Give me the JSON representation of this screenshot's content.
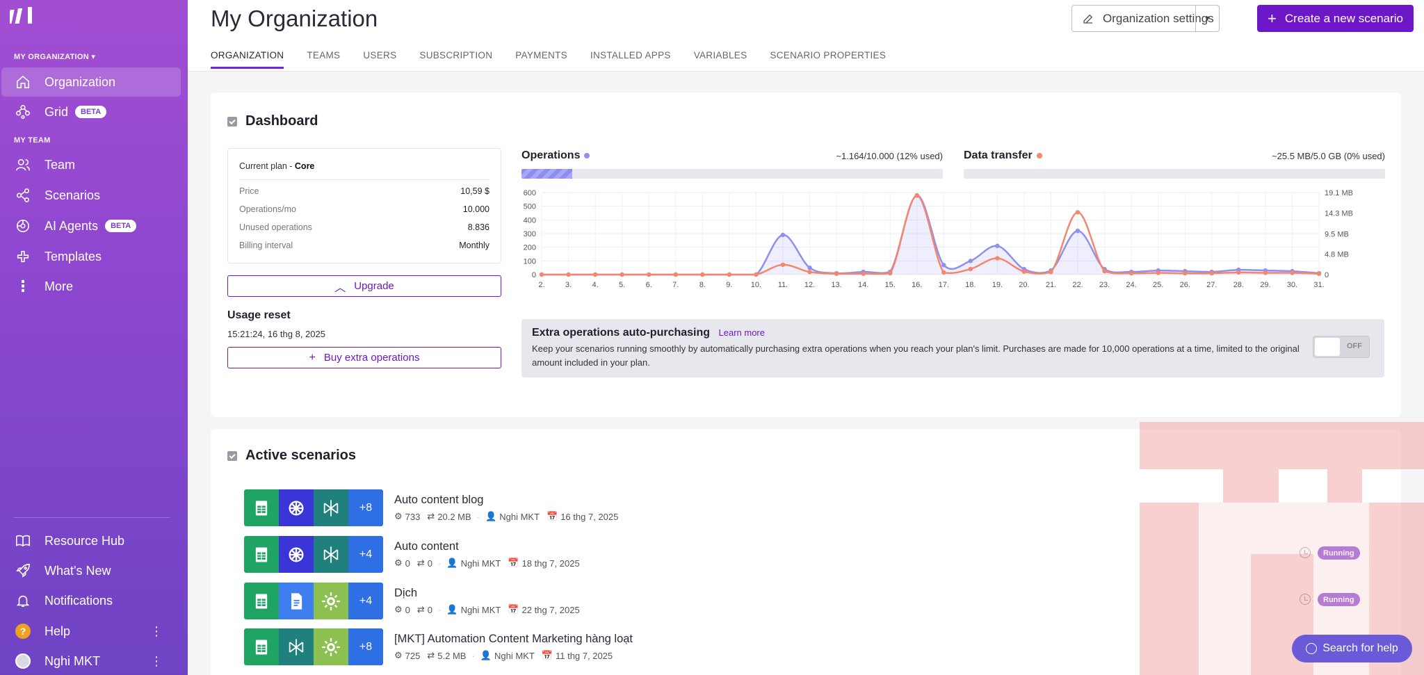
{
  "sidebar": {
    "org_section": "MY ORGANIZATION ▾",
    "team_section": "MY TEAM",
    "items": [
      {
        "label": "Organization",
        "icon": "home-icon"
      },
      {
        "label": "Grid",
        "icon": "grid-icon",
        "badge": "BETA"
      },
      {
        "label": "Team",
        "icon": "team-icon"
      },
      {
        "label": "Scenarios",
        "icon": "share-icon"
      },
      {
        "label": "AI Agents",
        "icon": "ai-agents-icon",
        "badge": "BETA"
      },
      {
        "label": "Templates",
        "icon": "templates-icon"
      },
      {
        "label": "More",
        "icon": "more-icon"
      }
    ],
    "bottom_items": [
      {
        "label": "Resource Hub",
        "icon": "book-icon"
      },
      {
        "label": "What's New",
        "icon": "rocket-icon"
      },
      {
        "label": "Notifications",
        "icon": "bell-icon"
      },
      {
        "label": "Help",
        "icon": "help-icon"
      },
      {
        "label": "Nghi MKT",
        "icon": "avatar"
      }
    ]
  },
  "header": {
    "title": "My Organization",
    "tabs": [
      "ORGANIZATION",
      "TEAMS",
      "USERS",
      "SUBSCRIPTION",
      "PAYMENTS",
      "INSTALLED APPS",
      "VARIABLES",
      "SCENARIO PROPERTIES"
    ],
    "org_settings_label": "Organization settings",
    "create_label": "Create a new scenario"
  },
  "dashboard": {
    "title": "Dashboard",
    "plan": {
      "label": "Current plan - ",
      "name": "Core",
      "rows": [
        {
          "k": "Price",
          "v": "10,59 $"
        },
        {
          "k": "Operations/mo",
          "v": "10.000"
        },
        {
          "k": "Unused operations",
          "v": "8.836"
        },
        {
          "k": "Billing interval",
          "v": "Monthly"
        }
      ]
    },
    "upgrade_label": "Upgrade",
    "usage_reset_title": "Usage reset",
    "usage_reset_date": "15:21:24, 16 thg 8, 2025",
    "buy_label": "Buy extra operations",
    "operations": {
      "label": "Operations",
      "value": "~1.164/10.000 (12% used)",
      "fraction": 0.12,
      "color": "#8f8ff0"
    },
    "data_transfer": {
      "label": "Data transfer",
      "value": "~25.5 MB/5.0 GB (0% used)",
      "fraction": 0.0,
      "color": "#f2876e"
    },
    "extra": {
      "title": "Extra operations auto-purchasing",
      "link": "Learn more",
      "text": "Keep your scenarios running smoothly by automatically purchasing extra operations when you reach your plan's limit. Purchases are made for 10,000 operations at a time, limited to the original amount included in your plan.",
      "toggle": "OFF"
    }
  },
  "chart_data": {
    "type": "line",
    "x": [
      "2.",
      "3.",
      "4.",
      "5.",
      "6.",
      "7.",
      "8.",
      "9.",
      "10.",
      "11.",
      "12.",
      "13.",
      "14.",
      "15.",
      "16.",
      "17.",
      "18.",
      "19.",
      "20.",
      "21.",
      "22.",
      "23.",
      "24.",
      "25.",
      "26.",
      "27.",
      "28.",
      "29.",
      "30.",
      "31."
    ],
    "yticks_left": [
      "0",
      "100",
      "200",
      "300",
      "400",
      "500",
      "600"
    ],
    "yticks_right": [
      "0",
      "4.8 MB",
      "9.5 MB",
      "14.3 MB",
      "19.1 MB"
    ],
    "ylim_left": [
      0,
      600
    ],
    "ylim_right": [
      0,
      19.1
    ],
    "series": [
      {
        "name": "Operations",
        "color": "#8f8ff0",
        "axis": "left",
        "values": [
          0,
          0,
          0,
          0,
          0,
          0,
          0,
          0,
          0,
          290,
          50,
          10,
          20,
          20,
          580,
          70,
          100,
          210,
          40,
          30,
          320,
          40,
          20,
          30,
          25,
          20,
          35,
          30,
          25,
          10
        ]
      },
      {
        "name": "Data transfer",
        "color": "#f2876e",
        "axis": "right",
        "values": [
          0,
          0,
          0,
          0,
          0,
          0,
          0,
          0,
          0,
          2.3,
          0.6,
          0.2,
          0.2,
          0.3,
          18.4,
          0.5,
          1.3,
          3.8,
          0.7,
          0.6,
          14.5,
          0.8,
          0.3,
          0.4,
          0.3,
          0.3,
          0.5,
          0.4,
          0.4,
          0.2
        ]
      }
    ]
  },
  "active": {
    "title": "Active scenarios",
    "scenarios": [
      {
        "name": "Auto content blog",
        "more": "+8",
        "ops": "733",
        "transfer": "20.2 MB",
        "user": "Nghi MKT",
        "date": "16 thg 7, 2025",
        "status": "",
        "icons": [
          "sheets",
          "openai",
          "perplexity"
        ]
      },
      {
        "name": "Auto content",
        "more": "+4",
        "ops": "0",
        "transfer": "0",
        "user": "Nghi MKT",
        "date": "18 thg 7, 2025",
        "status": "Running",
        "icons": [
          "sheets",
          "openai",
          "perplexity"
        ]
      },
      {
        "name": "Dịch",
        "more": "+4",
        "ops": "0",
        "transfer": "0",
        "user": "Nghi MKT",
        "date": "22 thg 7, 2025",
        "status": "Running",
        "icons": [
          "sheets",
          "docs",
          "tools"
        ]
      },
      {
        "name": "[MKT] Automation Content Marketing hàng loạt",
        "more": "+8",
        "ops": "725",
        "transfer": "5.2 MB",
        "user": "Nghi MKT",
        "date": "11 thg 7, 2025",
        "status": "",
        "icons": [
          "sheets",
          "perplexity",
          "tools"
        ]
      }
    ]
  },
  "help_button": "Search for help"
}
